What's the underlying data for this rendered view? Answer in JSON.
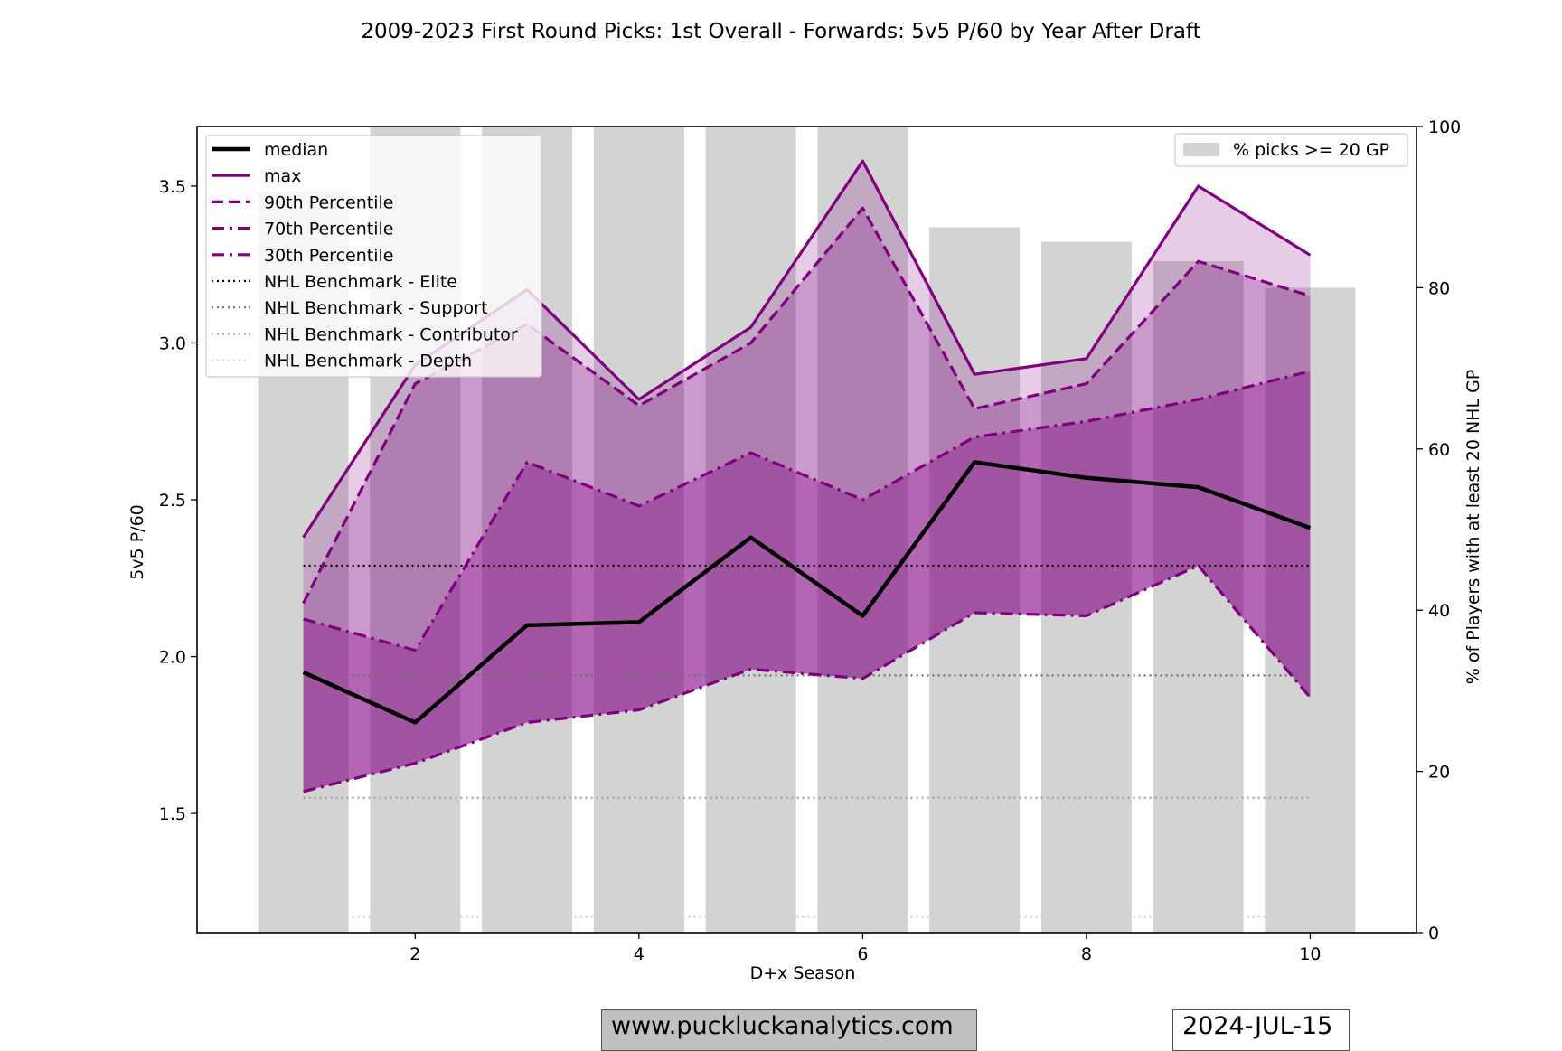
{
  "chart_data": {
    "type": "line",
    "title": "2009-2023 First Round Picks: 1st Overall - Forwards: 5v5 P/60 by Year After Draft",
    "xlabel": "D+x Season",
    "ylabel": "5v5 P/60",
    "y2label": "% of Players with at least 20 NHL GP",
    "xlim": [
      0.05,
      10.95
    ],
    "ylim": [
      1.12,
      3.69
    ],
    "y2lim": [
      0,
      100
    ],
    "x_ticks": [
      2,
      4,
      6,
      8,
      10
    ],
    "y_ticks": [
      1.5,
      2.0,
      2.5,
      3.0,
      3.5
    ],
    "y2_ticks": [
      0,
      20,
      40,
      60,
      80,
      100
    ],
    "grid": false,
    "x": [
      1,
      2,
      3,
      4,
      5,
      6,
      7,
      8,
      9,
      10
    ],
    "bars": {
      "name": "% picks >= 20 GP",
      "color": "#d3d3d3",
      "values": [
        92,
        100,
        100,
        100,
        100,
        100,
        87.5,
        85.7,
        83.3,
        80
      ]
    },
    "series": [
      {
        "name": "median",
        "style": "solid-thick",
        "color": "#000000",
        "values": [
          1.95,
          1.79,
          2.1,
          2.11,
          2.38,
          2.13,
          2.62,
          2.57,
          2.54,
          2.41
        ]
      },
      {
        "name": "max",
        "style": "solid",
        "color": "#800080",
        "values": [
          2.38,
          2.93,
          3.17,
          2.82,
          3.05,
          3.58,
          2.9,
          2.95,
          3.5,
          3.28
        ]
      },
      {
        "name": "90th Percentile",
        "style": "dashed",
        "color": "#800080",
        "values": [
          2.17,
          2.87,
          3.06,
          2.8,
          3.0,
          3.43,
          2.79,
          2.87,
          3.26,
          3.15
        ]
      },
      {
        "name": "70th Percentile",
        "style": "dashdot",
        "color": "#800080",
        "values": [
          2.12,
          2.02,
          2.62,
          2.48,
          2.65,
          2.5,
          2.7,
          2.75,
          2.82,
          2.91
        ]
      },
      {
        "name": "30th Percentile",
        "style": "dashdot",
        "color": "#800080",
        "values": [
          1.57,
          1.66,
          1.79,
          1.83,
          1.96,
          1.93,
          2.14,
          2.13,
          2.29,
          1.87
        ]
      }
    ],
    "benchmarks": [
      {
        "name": "NHL Benchmark - Elite",
        "value": 2.29,
        "color": "#000000"
      },
      {
        "name": "NHL Benchmark - Support",
        "value": 1.94,
        "color": "#707070"
      },
      {
        "name": "NHL Benchmark - Contributor",
        "value": 1.55,
        "color": "#a0a0a0"
      },
      {
        "name": "NHL Benchmark - Depth",
        "value": 1.17,
        "color": "#d3d3d3"
      }
    ],
    "legend_position": "top-left",
    "bar_legend_position": "top-right"
  },
  "footer": {
    "website": "www.puckluckanalytics.com",
    "date": "2024-JUL-15"
  }
}
